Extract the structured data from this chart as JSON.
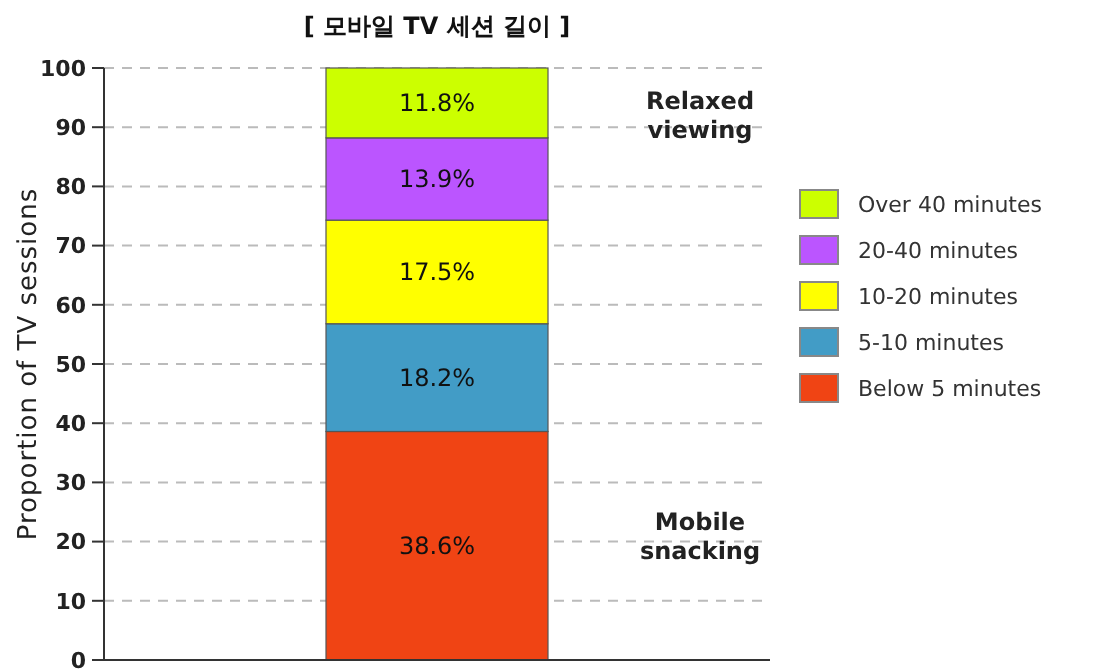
{
  "chart_data": {
    "type": "bar",
    "stacked": true,
    "title": "[ 모바일 TV 세션 길이 ]",
    "ylabel": "Proportion of TV sessions",
    "categories": [
      null
    ],
    "series": [
      {
        "name": "Below 5 minutes",
        "color": "#f04414",
        "values": [
          38.6
        ],
        "value_labels": [
          "38.6%"
        ]
      },
      {
        "name": "5-10 minutes",
        "color": "#429cc6",
        "values": [
          18.2
        ],
        "value_labels": [
          "18.2%"
        ]
      },
      {
        "name": "10-20 minutes",
        "color": "#ffff00",
        "values": [
          17.5
        ],
        "value_labels": [
          "17.5%"
        ]
      },
      {
        "name": "20-40 minutes",
        "color": "#bb55ff",
        "values": [
          13.9
        ],
        "value_labels": [
          "13.9%"
        ]
      },
      {
        "name": "Over 40 minutes",
        "color": "#ccff00",
        "values": [
          11.8
        ],
        "value_labels": [
          "11.8%"
        ]
      }
    ],
    "ylim": [
      0,
      100
    ],
    "yticks": [
      0,
      10,
      20,
      30,
      40,
      50,
      60,
      70,
      80,
      90,
      100
    ],
    "grid": "y",
    "legend": "right",
    "annotations": [
      "Relaxed viewing",
      "Mobile snacking"
    ]
  }
}
